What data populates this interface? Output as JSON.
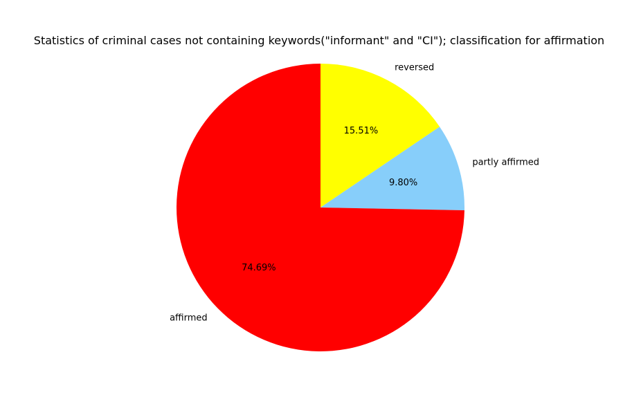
{
  "chart_data": {
    "type": "pie",
    "title": "Statistics of criminal cases not containing keywords(\"informant\" and \"CI\"); classification for affirmation",
    "slices": [
      {
        "label": "reversed",
        "value": 15.51,
        "pct_label": "15.51%",
        "color": "#ffff00"
      },
      {
        "label": "partly affirmed",
        "value": 9.8,
        "pct_label": "9.80%",
        "color": "#87cefa"
      },
      {
        "label": "affirmed",
        "value": 74.69,
        "pct_label": "74.69%",
        "color": "#ff0000"
      }
    ],
    "start_angle_deg": 90,
    "direction": "clockwise",
    "legend": "none"
  }
}
